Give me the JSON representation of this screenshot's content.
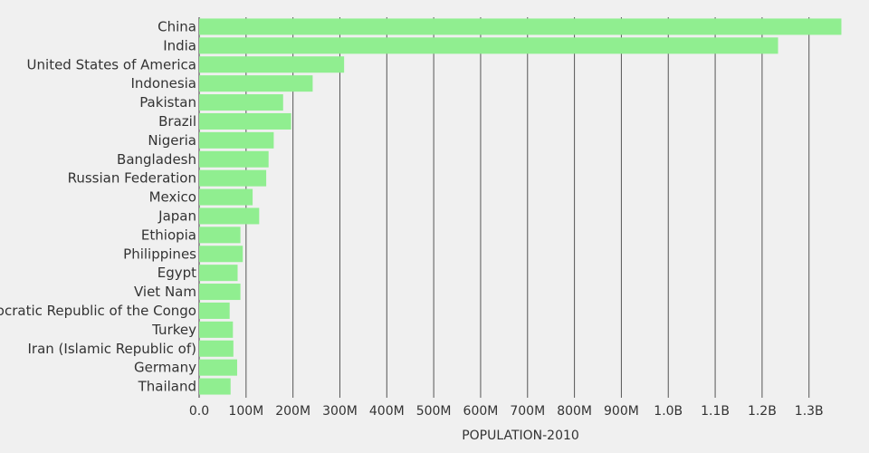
{
  "chart_data": {
    "type": "bar",
    "orientation": "horizontal",
    "xlabel": "POPULATION-2010",
    "ylabel": "",
    "xlim": [
      0,
      1370000000
    ],
    "grid": true,
    "bar_color": "#90ee90",
    "grid_color": "#555555",
    "x_ticks": [
      {
        "value": 0,
        "label": "0.0"
      },
      {
        "value": 100000000,
        "label": "100M"
      },
      {
        "value": 200000000,
        "label": "200M"
      },
      {
        "value": 300000000,
        "label": "300M"
      },
      {
        "value": 400000000,
        "label": "400M"
      },
      {
        "value": 500000000,
        "label": "500M"
      },
      {
        "value": 600000000,
        "label": "600M"
      },
      {
        "value": 700000000,
        "label": "700M"
      },
      {
        "value": 800000000,
        "label": "800M"
      },
      {
        "value": 900000000,
        "label": "900M"
      },
      {
        "value": 1000000000,
        "label": "1.0B"
      },
      {
        "value": 1100000000,
        "label": "1.1B"
      },
      {
        "value": 1200000000,
        "label": "1.2B"
      },
      {
        "value": 1300000000,
        "label": "1.3B"
      }
    ],
    "categories": [
      "China",
      "India",
      "United States of America",
      "Indonesia",
      "Pakistan",
      "Brazil",
      "Nigeria",
      "Bangladesh",
      "Russian Federation",
      "Mexico",
      "Japan",
      "Ethiopia",
      "Philippines",
      "Egypt",
      "Viet Nam",
      "Democratic Republic of the Congo",
      "Turkey",
      "Iran (Islamic Republic of)",
      "Germany",
      "Thailand"
    ],
    "values": [
      1369000000,
      1234000000,
      309000000,
      242000000,
      179000000,
      196000000,
      159000000,
      148000000,
      143000000,
      114000000,
      128000000,
      88000000,
      93000000,
      82000000,
      88000000,
      65000000,
      72000000,
      73000000,
      81000000,
      67000000
    ]
  }
}
